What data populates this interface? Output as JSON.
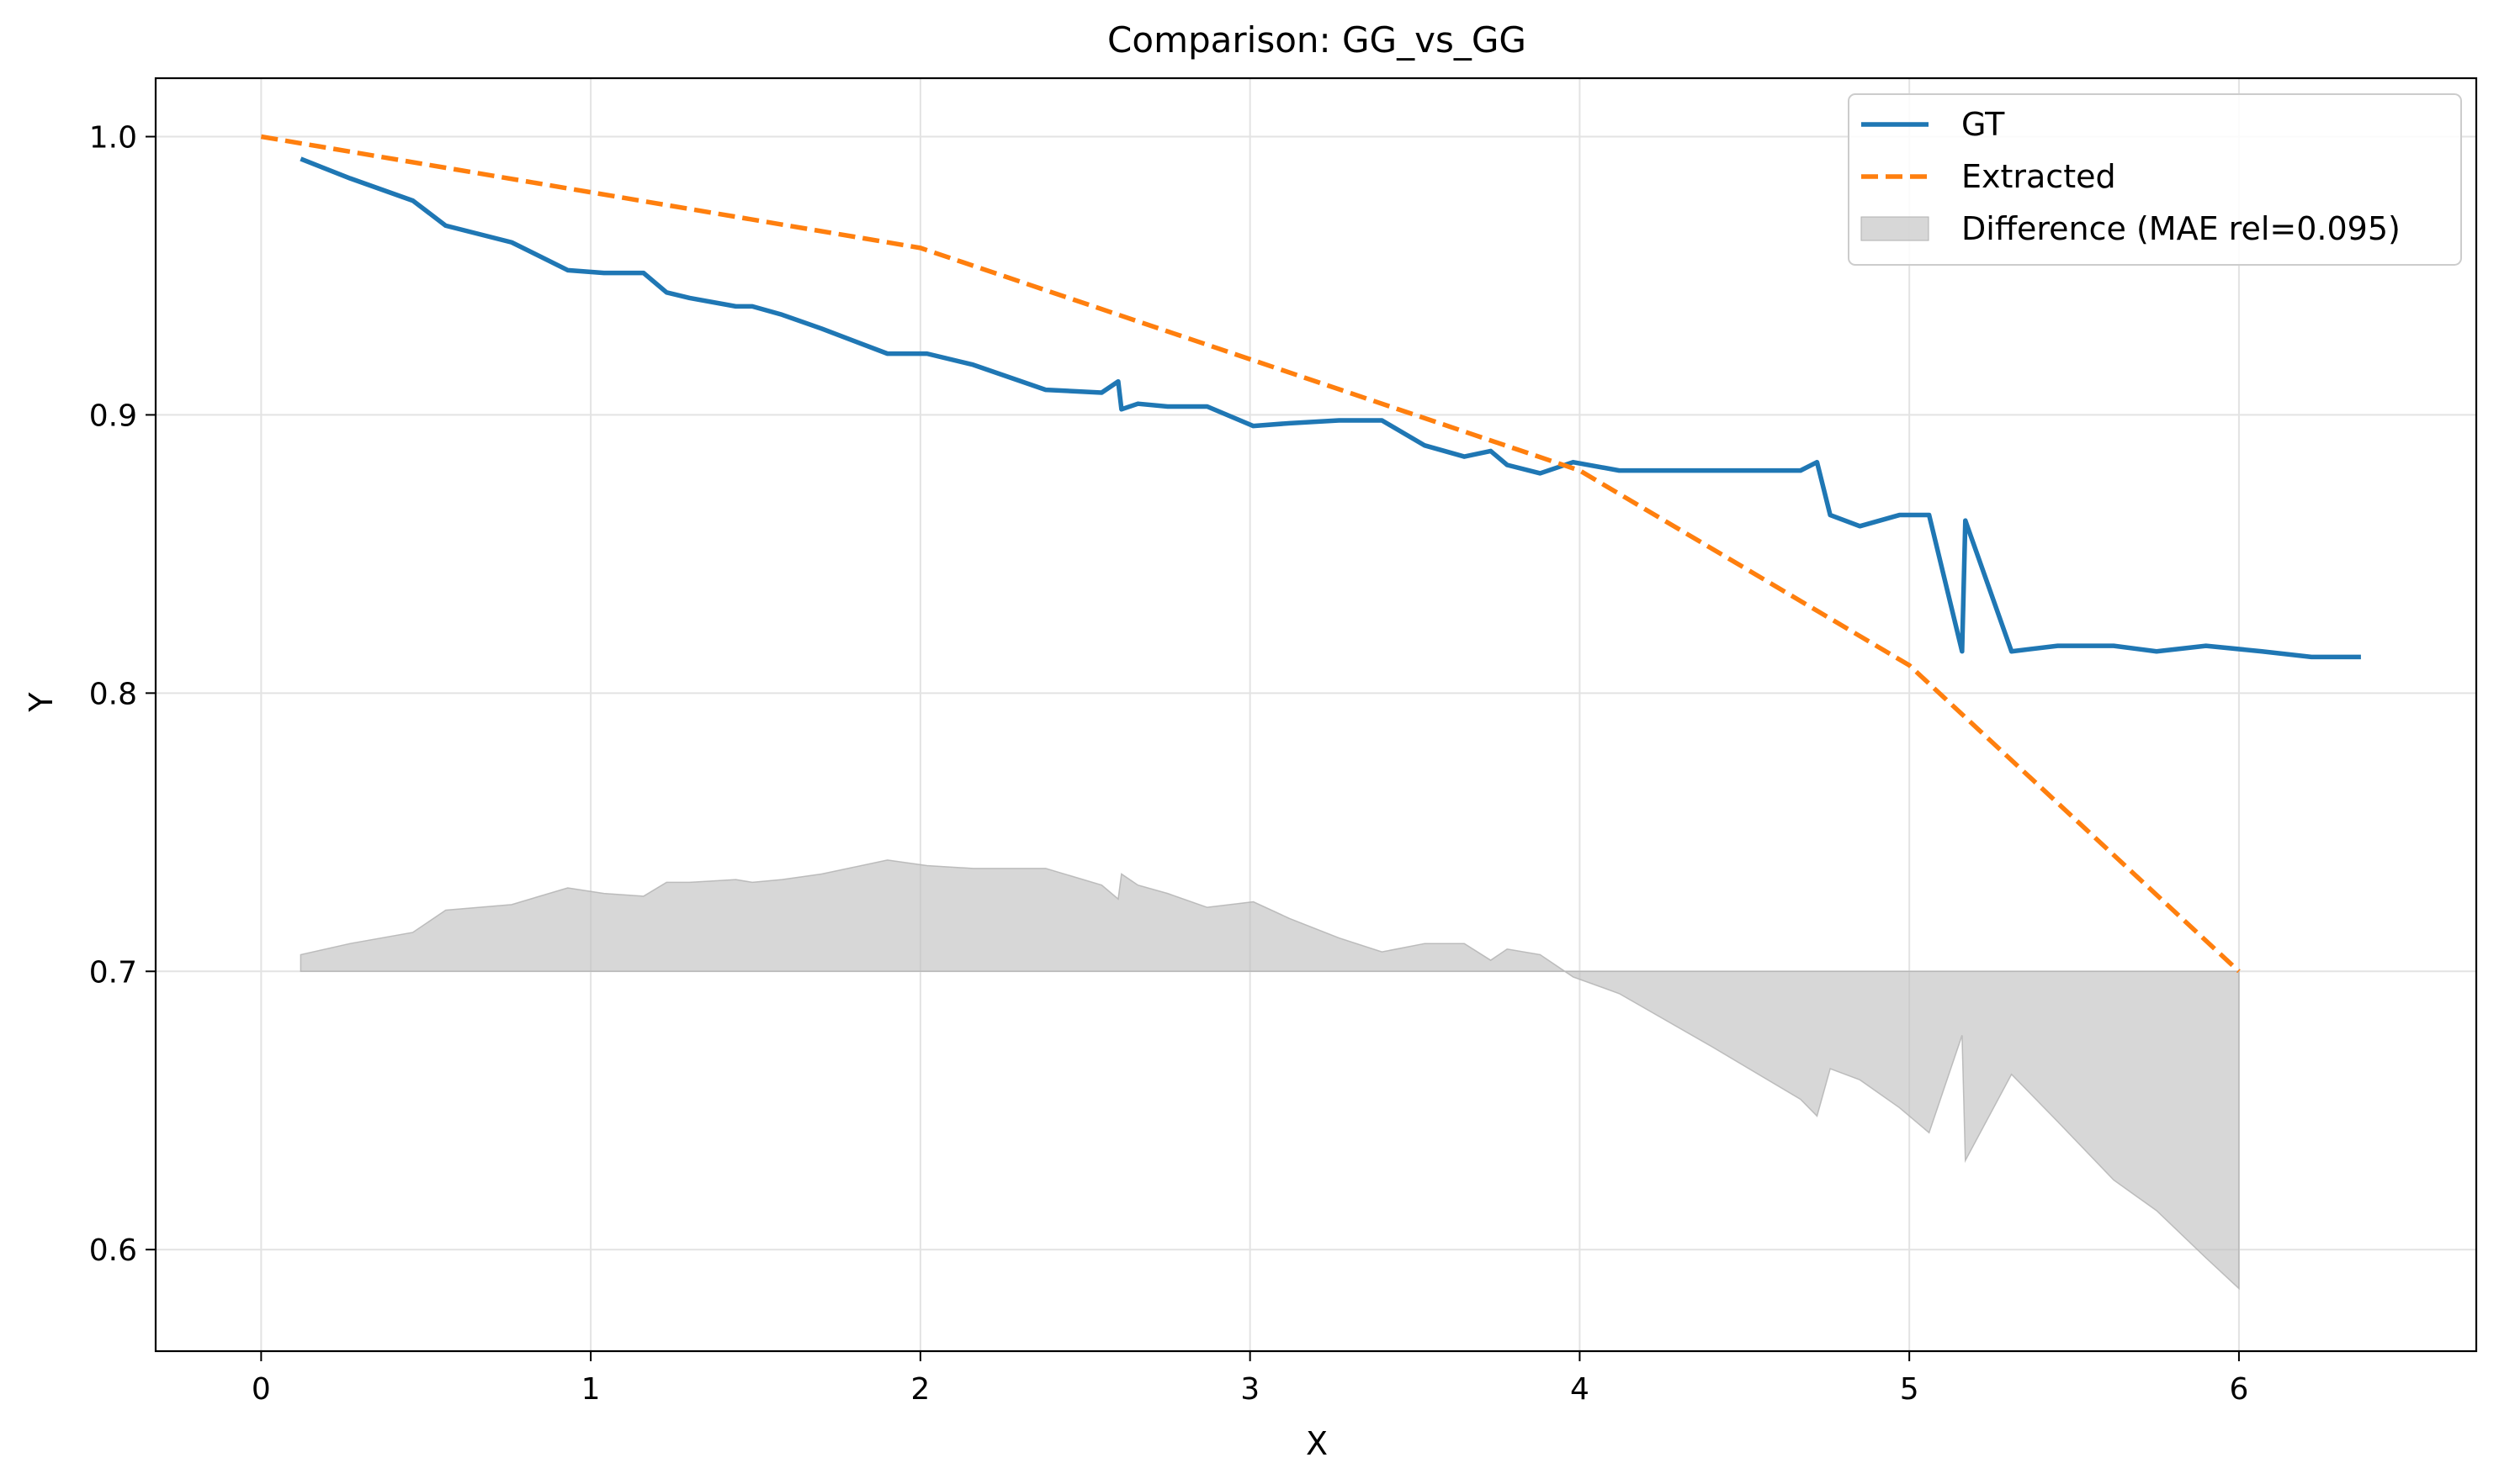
{
  "chart_data": {
    "type": "line",
    "title": "Comparison: GG_vs_GG",
    "xlabel": "X",
    "ylabel": "Y",
    "xlim": [
      -0.32,
      6.72
    ],
    "ylim": [
      0.5635,
      1.021
    ],
    "xticks": [
      {
        "value": 0,
        "label": "0"
      },
      {
        "value": 1,
        "label": "1"
      },
      {
        "value": 2,
        "label": "2"
      },
      {
        "value": 3,
        "label": "3"
      },
      {
        "value": 4,
        "label": "4"
      },
      {
        "value": 5,
        "label": "5"
      },
      {
        "value": 6,
        "label": "6"
      }
    ],
    "yticks": [
      {
        "value": 0.6,
        "label": "0.6"
      },
      {
        "value": 0.7,
        "label": "0.7"
      },
      {
        "value": 0.8,
        "label": "0.8"
      },
      {
        "value": 0.9,
        "label": "0.9"
      },
      {
        "value": 1.0,
        "label": "1.0"
      }
    ],
    "grid": true,
    "legend_position": "top-right",
    "series": [
      {
        "name": "GT",
        "style": "solid",
        "color": "#1f77b4",
        "x": [
          0.12,
          0.27,
          0.46,
          0.56,
          0.76,
          0.93,
          1.04,
          1.16,
          1.23,
          1.3,
          1.44,
          1.49,
          1.58,
          1.7,
          1.9,
          2.02,
          2.16,
          2.38,
          2.55,
          2.6,
          2.61,
          2.66,
          2.75,
          2.87,
          3.01,
          3.12,
          3.27,
          3.4,
          3.53,
          3.65,
          3.73,
          3.78,
          3.88,
          3.98,
          4.12,
          4.4,
          4.67,
          4.72,
          4.76,
          4.85,
          4.97,
          5.06,
          5.16,
          5.17,
          5.31,
          5.45,
          5.62,
          5.75,
          5.9,
          6.07,
          6.22,
          6.37
        ],
        "y": [
          0.992,
          0.985,
          0.977,
          0.968,
          0.962,
          0.952,
          0.951,
          0.951,
          0.944,
          0.942,
          0.939,
          0.939,
          0.936,
          0.931,
          0.922,
          0.922,
          0.918,
          0.909,
          0.908,
          0.912,
          0.902,
          0.904,
          0.903,
          0.903,
          0.896,
          0.897,
          0.898,
          0.898,
          0.889,
          0.885,
          0.887,
          0.882,
          0.879,
          0.883,
          0.88,
          0.88,
          0.88,
          0.883,
          0.864,
          0.86,
          0.864,
          0.864,
          0.815,
          0.862,
          0.815,
          0.817,
          0.817,
          0.815,
          0.817,
          0.815,
          0.813,
          0.813
        ]
      },
      {
        "name": "Extracted",
        "style": "dashed",
        "color": "#ff7f0e",
        "x": [
          0,
          1,
          2,
          3,
          4,
          5,
          6
        ],
        "y": [
          1.0,
          0.98,
          0.96,
          0.92,
          0.88,
          0.81,
          0.7
        ]
      },
      {
        "name": "Difference (MAE rel=0.095)",
        "style": "fill",
        "color": "#bfbfbf",
        "baseline": 0.7,
        "x": [
          0.12,
          0.27,
          0.46,
          0.56,
          0.76,
          0.93,
          1.04,
          1.16,
          1.23,
          1.3,
          1.44,
          1.49,
          1.58,
          1.7,
          1.9,
          2.02,
          2.16,
          2.38,
          2.55,
          2.6,
          2.61,
          2.66,
          2.75,
          2.87,
          3.01,
          3.12,
          3.27,
          3.4,
          3.53,
          3.65,
          3.73,
          3.78,
          3.88,
          3.98,
          4.12,
          4.4,
          4.67,
          4.72,
          4.76,
          4.85,
          4.97,
          5.06,
          5.16,
          5.17,
          5.31,
          5.45,
          5.62,
          5.75,
          5.9,
          6.0
        ],
        "y": [
          0.706,
          0.71,
          0.714,
          0.722,
          0.724,
          0.73,
          0.728,
          0.727,
          0.732,
          0.732,
          0.733,
          0.732,
          0.733,
          0.735,
          0.74,
          0.738,
          0.737,
          0.737,
          0.731,
          0.726,
          0.735,
          0.731,
          0.728,
          0.723,
          0.725,
          0.719,
          0.712,
          0.707,
          0.71,
          0.71,
          0.704,
          0.708,
          0.706,
          0.698,
          0.692,
          0.673,
          0.654,
          0.648,
          0.665,
          0.661,
          0.651,
          0.642,
          0.677,
          0.632,
          0.663,
          0.646,
          0.625,
          0.614,
          0.597,
          0.586
        ]
      }
    ]
  }
}
